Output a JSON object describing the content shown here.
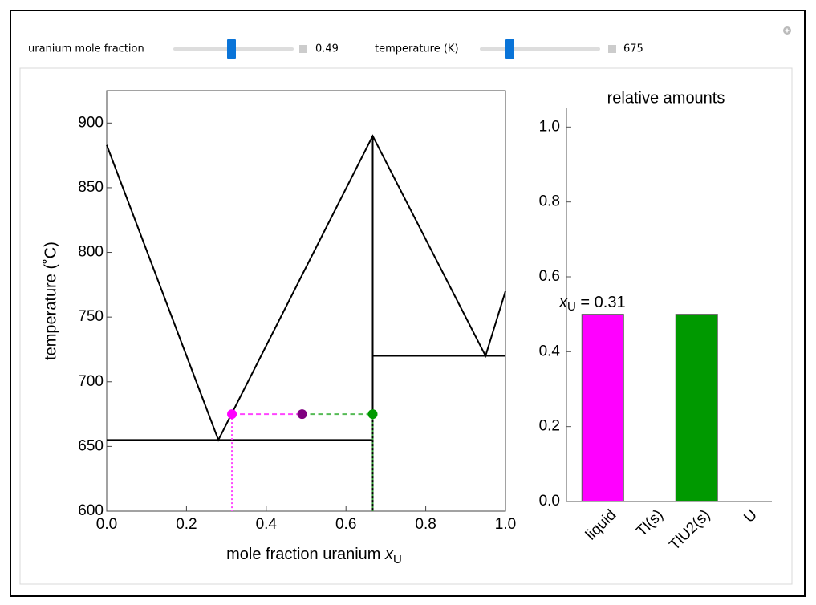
{
  "controls": [
    {
      "label": "uranium mole fraction",
      "value": "0.49"
    },
    {
      "label": "temperature (K)",
      "value": "675"
    }
  ],
  "chart_data": [
    {
      "type": "line",
      "xlabel": [
        "mole fraction uranium ",
        "x",
        "U"
      ],
      "ylabel": "temperature (˚C)",
      "xlim": [
        0,
        1
      ],
      "ylim": [
        600,
        925
      ],
      "xticks": [
        {
          "value": 0,
          "label": "0.0"
        },
        0.2,
        0.4,
        0.6,
        0.8,
        {
          "value": 1,
          "label": "1.0"
        }
      ],
      "yticks": [
        600,
        650,
        700,
        750,
        800,
        850,
        900
      ],
      "series": [
        {
          "x": [
            0,
            0.28,
            0.667,
            0.95,
            1
          ],
          "values": [
            883,
            655,
            890,
            720,
            770
          ],
          "color": "#000000",
          "style": "solid"
        },
        {
          "x": [
            0,
            0.667
          ],
          "values": [
            655,
            655
          ],
          "color": "#000000",
          "style": "solid"
        },
        {
          "x": [
            0.667,
            0.667
          ],
          "values": [
            600,
            890
          ],
          "color": "#000000",
          "style": "solid"
        },
        {
          "x": [
            0.667,
            1
          ],
          "values": [
            720,
            720
          ],
          "color": "#000000",
          "style": "solid"
        },
        {
          "x": [
            0.314,
            0.49
          ],
          "values": [
            675,
            675
          ],
          "color": "#ff44ff",
          "style": "dashed"
        },
        {
          "x": [
            0.49,
            0.667
          ],
          "values": [
            675,
            675
          ],
          "color": "#55bb55",
          "style": "dashed"
        },
        {
          "x": [
            0.314,
            0.314
          ],
          "values": [
            675,
            600
          ],
          "color": "#ff44ff",
          "style": "dotted"
        },
        {
          "x": [
            0.667,
            0.667
          ],
          "values": [
            675,
            600
          ],
          "color": "#339933",
          "style": "dotted"
        },
        {
          "x": [
            0.314,
            0.49,
            0.667
          ],
          "values": [
            675,
            675,
            675
          ],
          "colors": [
            "#ff00ff",
            "#800080",
            "#009900"
          ],
          "style": "points"
        }
      ]
    },
    {
      "type": "bar",
      "title": "relative amounts",
      "annotation": [
        "x",
        "U",
        " = 0.31"
      ],
      "categories": [
        "liquid",
        "Tl(s)",
        "TlU2(s)",
        "U"
      ],
      "values": [
        0.5,
        0,
        0.5,
        0
      ],
      "colors": [
        "#ff00ff",
        "#ff00ff",
        "#009900",
        "#009900"
      ],
      "ylim": [
        0,
        1.05
      ],
      "yticks": [
        {
          "value": 0,
          "label": "0.0"
        },
        0.2,
        0.4,
        0.6,
        0.8,
        {
          "value": 1,
          "label": "1.0"
        }
      ]
    }
  ]
}
